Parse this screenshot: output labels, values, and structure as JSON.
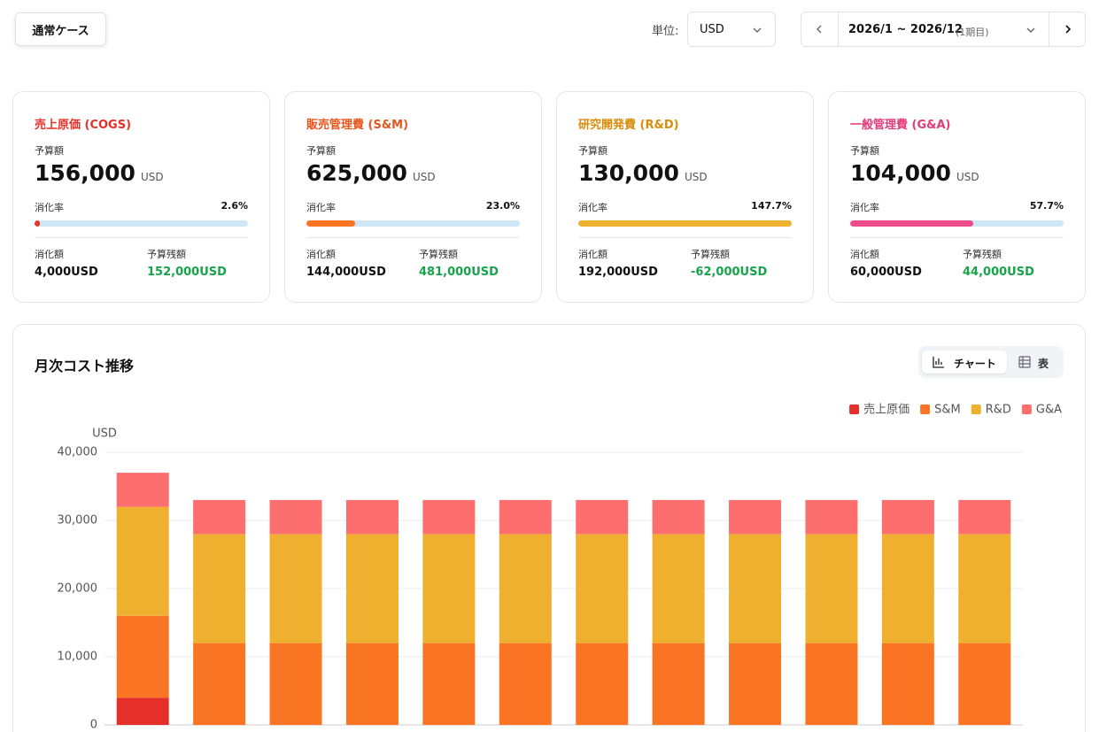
{
  "header": {
    "case_button": "通常ケース",
    "unit_label": "単位:",
    "unit_value": "USD",
    "period": "2026/1 ~ 2026/12",
    "period_note": "(1期目)"
  },
  "cards": [
    {
      "title": "売上原価 (COGS)",
      "color": "#e5302a",
      "bar_color": "#e8352b",
      "budget_label": "予算額",
      "budget": "156,000",
      "budget_unit": "USD",
      "rate_label": "消化率",
      "rate": 2.6,
      "rate_text": "2.6%",
      "spent_label": "消化額",
      "spent": "4,000USD",
      "remaining_label": "予算残額",
      "remaining": "152,000USD"
    },
    {
      "title": "販売管理費 (S&M)",
      "color": "#e8551c",
      "bar_color": "#f97524",
      "budget_label": "予算額",
      "budget": "625,000",
      "budget_unit": "USD",
      "rate_label": "消化率",
      "rate": 23.0,
      "rate_text": "23.0%",
      "spent_label": "消化額",
      "spent": "144,000USD",
      "remaining_label": "予算残額",
      "remaining": "481,000USD"
    },
    {
      "title": "研究開発費 (R&D)",
      "color": "#d98c0a",
      "bar_color": "#efb030",
      "budget_label": "予算額",
      "budget": "130,000",
      "budget_unit": "USD",
      "rate_label": "消化率",
      "rate": 147.7,
      "rate_text": "147.7%",
      "spent_label": "消化額",
      "spent": "192,000USD",
      "remaining_label": "予算残額",
      "remaining": "-62,000USD"
    },
    {
      "title": "一般管理費 (G&A)",
      "color": "#e23b7a",
      "bar_color": "#ee4b8a",
      "budget_label": "予算額",
      "budget": "104,000",
      "budget_unit": "USD",
      "rate_label": "消化率",
      "rate": 57.7,
      "rate_text": "57.7%",
      "spent_label": "消化額",
      "spent": "60,000USD",
      "remaining_label": "予算残額",
      "remaining": "44,000USD"
    }
  ],
  "section": {
    "title": "月次コスト推移",
    "toggle_chart": "チャート",
    "toggle_table": "表"
  },
  "chart_data": {
    "type": "bar",
    "stacked": true,
    "y_unit": "USD",
    "series": [
      {
        "name": "売上原価",
        "color": "#e5302a",
        "values": [
          4000,
          0,
          0,
          0,
          0,
          0,
          0,
          0,
          0,
          0,
          0,
          0
        ]
      },
      {
        "name": "S&M",
        "color": "#f97524",
        "values": [
          12000,
          12000,
          12000,
          12000,
          12000,
          12000,
          12000,
          12000,
          12000,
          12000,
          12000,
          12000
        ]
      },
      {
        "name": "R&D",
        "color": "#efb030",
        "values": [
          16000,
          16000,
          16000,
          16000,
          16000,
          16000,
          16000,
          16000,
          16000,
          16000,
          16000,
          16000
        ]
      },
      {
        "name": "G&A",
        "color": "#fd6f6f",
        "values": [
          5000,
          5000,
          5000,
          5000,
          5000,
          5000,
          5000,
          5000,
          5000,
          5000,
          5000,
          5000
        ]
      }
    ],
    "ylim": [
      0,
      40000
    ],
    "yticks": [
      0,
      {
        "value": 10000,
        "label": "10,000"
      },
      {
        "value": 20000,
        "label": "20,000"
      },
      {
        "value": 30000,
        "label": "30,000"
      },
      {
        "value": 40000,
        "label": "40,000"
      }
    ],
    "grid": true,
    "legend": "top-right"
  }
}
